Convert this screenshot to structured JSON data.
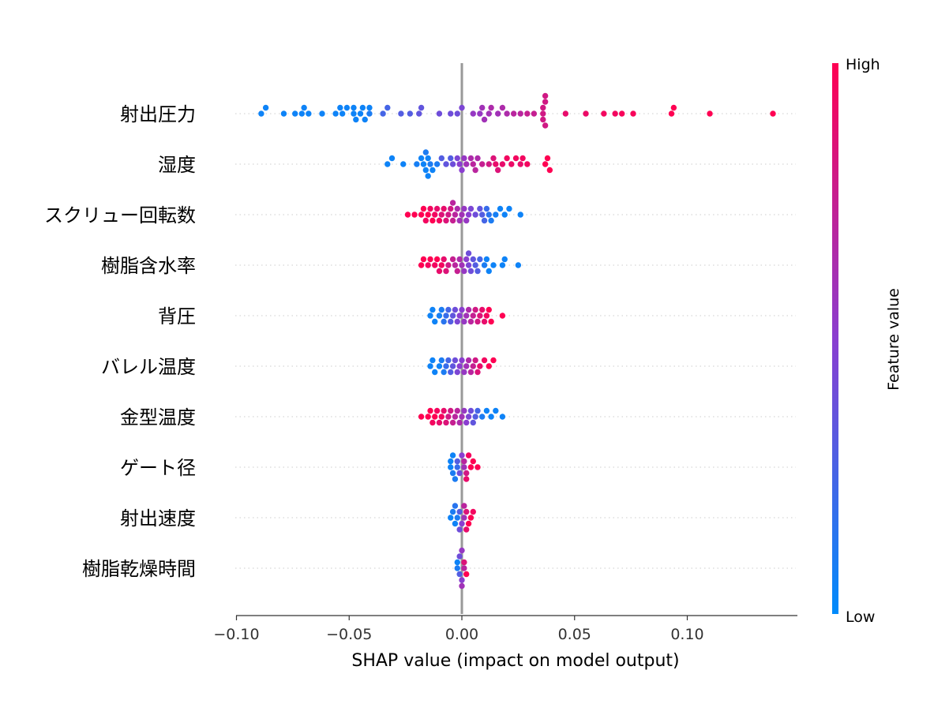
{
  "chart_data": {
    "type": "scatter",
    "subtype": "shap-beeswarm",
    "xlabel": "SHAP value (impact on model output)",
    "xlim": [
      -0.1,
      0.148
    ],
    "xticks": [
      -0.1,
      -0.05,
      0.0,
      0.05,
      0.1
    ],
    "xtick_labels": [
      "−0.10",
      "−0.05",
      "0.00",
      "0.05",
      "0.10"
    ],
    "grid": "dotted horizontal per feature",
    "colorbar": {
      "label": "Feature value",
      "high": "High",
      "low": "Low",
      "low_color": "#008bfb",
      "mid_color": "#8a3ed0",
      "high_color": "#ff0052"
    },
    "point_format": [
      "shap_value",
      "normalized_feature_value"
    ],
    "features": [
      {
        "name": "射出圧力",
        "points": [
          [
            -0.089,
            0.05
          ],
          [
            -0.087,
            0.05
          ],
          [
            -0.079,
            0.05
          ],
          [
            -0.074,
            0.05
          ],
          [
            -0.071,
            0.05
          ],
          [
            -0.07,
            0.05
          ],
          [
            -0.068,
            0.05
          ],
          [
            -0.062,
            0.05
          ],
          [
            -0.056,
            0.05
          ],
          [
            -0.054,
            0.05
          ],
          [
            -0.053,
            0.05
          ],
          [
            -0.051,
            0.05
          ],
          [
            -0.048,
            0.05
          ],
          [
            -0.048,
            0.05
          ],
          [
            -0.047,
            0.05
          ],
          [
            -0.045,
            0.05
          ],
          [
            -0.044,
            0.05
          ],
          [
            -0.043,
            0.05
          ],
          [
            -0.041,
            0.1
          ],
          [
            -0.041,
            0.05
          ],
          [
            -0.035,
            0.25
          ],
          [
            -0.033,
            0.25
          ],
          [
            -0.027,
            0.3
          ],
          [
            -0.023,
            0.3
          ],
          [
            -0.019,
            0.35
          ],
          [
            -0.018,
            0.35
          ],
          [
            -0.01,
            0.4
          ],
          [
            -0.005,
            0.4
          ],
          [
            -0.002,
            0.4
          ],
          [
            0.0,
            0.45
          ],
          [
            0.005,
            0.55
          ],
          [
            0.008,
            0.55
          ],
          [
            0.009,
            0.6
          ],
          [
            0.01,
            0.6
          ],
          [
            0.012,
            0.6
          ],
          [
            0.013,
            0.65
          ],
          [
            0.016,
            0.6
          ],
          [
            0.018,
            0.65
          ],
          [
            0.02,
            0.65
          ],
          [
            0.023,
            0.7
          ],
          [
            0.026,
            0.7
          ],
          [
            0.029,
            0.75
          ],
          [
            0.032,
            0.75
          ],
          [
            0.036,
            0.8
          ],
          [
            0.036,
            0.8
          ],
          [
            0.036,
            0.8
          ],
          [
            0.037,
            0.8
          ],
          [
            0.037,
            0.8
          ],
          [
            0.037,
            0.8
          ],
          [
            0.046,
            0.9
          ],
          [
            0.055,
            0.92
          ],
          [
            0.063,
            0.95
          ],
          [
            0.068,
            0.95
          ],
          [
            0.071,
            0.97
          ],
          [
            0.076,
            0.97
          ],
          [
            0.093,
            1
          ],
          [
            0.094,
            1
          ],
          [
            0.11,
            1
          ],
          [
            0.138,
            1
          ]
        ]
      },
      {
        "name": "湿度",
        "points": [
          [
            -0.033,
            0.05
          ],
          [
            -0.031,
            0.05
          ],
          [
            -0.026,
            0.05
          ],
          [
            -0.02,
            0.08
          ],
          [
            -0.018,
            0.05
          ],
          [
            -0.017,
            0.05
          ],
          [
            -0.016,
            0.05
          ],
          [
            -0.016,
            0.1
          ],
          [
            -0.015,
            0.05
          ],
          [
            -0.015,
            0.05
          ],
          [
            -0.014,
            0.1
          ],
          [
            -0.013,
            0.05
          ],
          [
            -0.011,
            0.1
          ],
          [
            -0.009,
            0.3
          ],
          [
            -0.007,
            0.35
          ],
          [
            -0.005,
            0.3
          ],
          [
            -0.004,
            0.4
          ],
          [
            -0.002,
            0.45
          ],
          [
            -0.001,
            0.5
          ],
          [
            0.0,
            0.5
          ],
          [
            0.001,
            0.55
          ],
          [
            0.002,
            0.6
          ],
          [
            0.004,
            0.65
          ],
          [
            0.005,
            0.7
          ],
          [
            0.006,
            0.7
          ],
          [
            0.007,
            0.65
          ],
          [
            0.009,
            0.75
          ],
          [
            0.012,
            0.8
          ],
          [
            0.014,
            0.85
          ],
          [
            0.015,
            0.9
          ],
          [
            0.016,
            0.85
          ],
          [
            0.018,
            0.9
          ],
          [
            0.02,
            0.95
          ],
          [
            0.022,
            0.92
          ],
          [
            0.024,
            0.95
          ],
          [
            0.026,
            0.9
          ],
          [
            0.027,
            0.95
          ],
          [
            0.029,
            0.95
          ],
          [
            0.037,
            1
          ],
          [
            0.038,
            1
          ],
          [
            0.039,
            1
          ]
        ]
      },
      {
        "name": "スクリュー回転数",
        "points": [
          [
            -0.024,
            1
          ],
          [
            -0.021,
            1
          ],
          [
            -0.018,
            1
          ],
          [
            -0.017,
            1
          ],
          [
            -0.016,
            0.95
          ],
          [
            -0.015,
            1
          ],
          [
            -0.014,
            0.95
          ],
          [
            -0.013,
            1
          ],
          [
            -0.012,
            0.95
          ],
          [
            -0.011,
            0.9
          ],
          [
            -0.01,
            0.95
          ],
          [
            -0.009,
            0.85
          ],
          [
            -0.008,
            0.9
          ],
          [
            -0.007,
            0.85
          ],
          [
            -0.006,
            0.8
          ],
          [
            -0.005,
            0.8
          ],
          [
            -0.004,
            0.75
          ],
          [
            -0.004,
            0.7
          ],
          [
            -0.003,
            0.7
          ],
          [
            -0.002,
            0.65
          ],
          [
            -0.001,
            0.6
          ],
          [
            0.0,
            0.6
          ],
          [
            0.001,
            0.55
          ],
          [
            0.002,
            0.55
          ],
          [
            0.003,
            0.5
          ],
          [
            0.004,
            0.45
          ],
          [
            0.006,
            0.4
          ],
          [
            0.008,
            0.35
          ],
          [
            0.009,
            0.3
          ],
          [
            0.01,
            0.25
          ],
          [
            0.011,
            0.2
          ],
          [
            0.012,
            0.15
          ],
          [
            0.013,
            0.1
          ],
          [
            0.015,
            0.08
          ],
          [
            0.017,
            0.05
          ],
          [
            0.019,
            0.05
          ],
          [
            0.021,
            0.05
          ],
          [
            0.026,
            0.05
          ]
        ]
      },
      {
        "name": "樹脂含水率",
        "points": [
          [
            -0.018,
            1
          ],
          [
            -0.017,
            1
          ],
          [
            -0.015,
            0.95
          ],
          [
            -0.014,
            1
          ],
          [
            -0.012,
            0.95
          ],
          [
            -0.011,
            1
          ],
          [
            -0.01,
            0.9
          ],
          [
            -0.009,
            0.95
          ],
          [
            -0.008,
            0.9
          ],
          [
            -0.007,
            0.85
          ],
          [
            -0.006,
            0.8
          ],
          [
            -0.004,
            0.75
          ],
          [
            -0.003,
            0.7
          ],
          [
            -0.002,
            0.75
          ],
          [
            -0.001,
            0.65
          ],
          [
            0.0,
            0.6
          ],
          [
            0.001,
            0.55
          ],
          [
            0.002,
            0.5
          ],
          [
            0.003,
            0.45
          ],
          [
            0.003,
            0.4
          ],
          [
            0.004,
            0.4
          ],
          [
            0.005,
            0.35
          ],
          [
            0.006,
            0.3
          ],
          [
            0.007,
            0.3
          ],
          [
            0.008,
            0.25
          ],
          [
            0.01,
            0.1
          ],
          [
            0.011,
            0.05
          ],
          [
            0.012,
            0.05
          ],
          [
            0.014,
            0.05
          ],
          [
            0.018,
            0.05
          ],
          [
            0.019,
            0.05
          ],
          [
            0.025,
            0.05
          ]
        ]
      },
      {
        "name": "背圧",
        "points": [
          [
            -0.014,
            0.05
          ],
          [
            -0.013,
            0.05
          ],
          [
            -0.012,
            0.05
          ],
          [
            -0.01,
            0.08
          ],
          [
            -0.009,
            0.1
          ],
          [
            -0.008,
            0.15
          ],
          [
            -0.007,
            0.2
          ],
          [
            -0.006,
            0.25
          ],
          [
            -0.005,
            0.3
          ],
          [
            -0.004,
            0.35
          ],
          [
            -0.003,
            0.4
          ],
          [
            -0.002,
            0.45
          ],
          [
            -0.001,
            0.5
          ],
          [
            0.0,
            0.5
          ],
          [
            0.001,
            0.55
          ],
          [
            0.002,
            0.6
          ],
          [
            0.003,
            0.65
          ],
          [
            0.004,
            0.7
          ],
          [
            0.005,
            0.75
          ],
          [
            0.006,
            0.8
          ],
          [
            0.007,
            0.8
          ],
          [
            0.008,
            0.85
          ],
          [
            0.009,
            0.9
          ],
          [
            0.01,
            0.9
          ],
          [
            0.011,
            0.95
          ],
          [
            0.012,
            1
          ],
          [
            0.013,
            1
          ],
          [
            0.018,
            1
          ]
        ]
      },
      {
        "name": "バレル温度",
        "points": [
          [
            -0.014,
            0.05
          ],
          [
            -0.013,
            0.05
          ],
          [
            -0.012,
            0.05
          ],
          [
            -0.01,
            0.05
          ],
          [
            -0.009,
            0.1
          ],
          [
            -0.008,
            0.1
          ],
          [
            -0.007,
            0.2
          ],
          [
            -0.006,
            0.25
          ],
          [
            -0.005,
            0.3
          ],
          [
            -0.004,
            0.35
          ],
          [
            -0.003,
            0.4
          ],
          [
            -0.002,
            0.45
          ],
          [
            -0.001,
            0.5
          ],
          [
            0.0,
            0.5
          ],
          [
            0.001,
            0.55
          ],
          [
            0.002,
            0.6
          ],
          [
            0.003,
            0.65
          ],
          [
            0.004,
            0.7
          ],
          [
            0.005,
            0.75
          ],
          [
            0.006,
            0.8
          ],
          [
            0.007,
            0.85
          ],
          [
            0.008,
            0.9
          ],
          [
            0.01,
            0.95
          ],
          [
            0.012,
            1
          ],
          [
            0.014,
            1
          ]
        ]
      },
      {
        "name": "金型温度",
        "points": [
          [
            -0.018,
            1
          ],
          [
            -0.015,
            1
          ],
          [
            -0.014,
            1
          ],
          [
            -0.013,
            0.95
          ],
          [
            -0.012,
            1
          ],
          [
            -0.011,
            0.95
          ],
          [
            -0.01,
            0.9
          ],
          [
            -0.009,
            0.95
          ],
          [
            -0.008,
            0.9
          ],
          [
            -0.007,
            0.85
          ],
          [
            -0.006,
            0.8
          ],
          [
            -0.005,
            0.8
          ],
          [
            -0.004,
            0.75
          ],
          [
            -0.003,
            0.7
          ],
          [
            -0.002,
            0.7
          ],
          [
            -0.001,
            0.65
          ],
          [
            0.0,
            0.6
          ],
          [
            0.001,
            0.55
          ],
          [
            0.002,
            0.5
          ],
          [
            0.003,
            0.45
          ],
          [
            0.004,
            0.4
          ],
          [
            0.005,
            0.35
          ],
          [
            0.006,
            0.3
          ],
          [
            0.007,
            0.25
          ],
          [
            0.009,
            0.1
          ],
          [
            0.011,
            0.05
          ],
          [
            0.013,
            0.05
          ],
          [
            0.015,
            0.05
          ],
          [
            0.018,
            0.05
          ]
        ]
      },
      {
        "name": "ゲート径",
        "points": [
          [
            -0.005,
            0.05
          ],
          [
            -0.005,
            0.05
          ],
          [
            -0.004,
            0.1
          ],
          [
            -0.004,
            0.05
          ],
          [
            -0.003,
            0.1
          ],
          [
            -0.002,
            0.2
          ],
          [
            -0.002,
            0.3
          ],
          [
            -0.001,
            0.4
          ],
          [
            0.0,
            0.5
          ],
          [
            0.001,
            0.6
          ],
          [
            0.001,
            0.7
          ],
          [
            0.002,
            0.8
          ],
          [
            0.002,
            0.9
          ],
          [
            0.003,
            0.95
          ],
          [
            0.004,
            1
          ],
          [
            0.005,
            1
          ],
          [
            0.007,
            1
          ]
        ]
      },
      {
        "name": "射出速度",
        "points": [
          [
            -0.005,
            0.05
          ],
          [
            -0.004,
            0.1
          ],
          [
            -0.003,
            0.05
          ],
          [
            -0.003,
            0.15
          ],
          [
            -0.002,
            0.1
          ],
          [
            -0.001,
            0.3
          ],
          [
            -0.001,
            0.4
          ],
          [
            0.0,
            0.5
          ],
          [
            0.001,
            0.6
          ],
          [
            0.001,
            0.7
          ],
          [
            0.002,
            0.85
          ],
          [
            0.002,
            0.9
          ],
          [
            0.003,
            1
          ],
          [
            0.004,
            1
          ],
          [
            0.005,
            0.95
          ]
        ]
      },
      {
        "name": "樹脂乾燥時間",
        "points": [
          [
            -0.002,
            0.1
          ],
          [
            -0.001,
            0.3
          ],
          [
            -0.001,
            0.4
          ],
          [
            0.0,
            0.5
          ],
          [
            0.0,
            0.55
          ],
          [
            0.001,
            0.7
          ],
          [
            0.001,
            0.85
          ],
          [
            0.002,
            1
          ],
          [
            0.0,
            0.6
          ],
          [
            -0.002,
            0.05
          ]
        ]
      }
    ]
  }
}
